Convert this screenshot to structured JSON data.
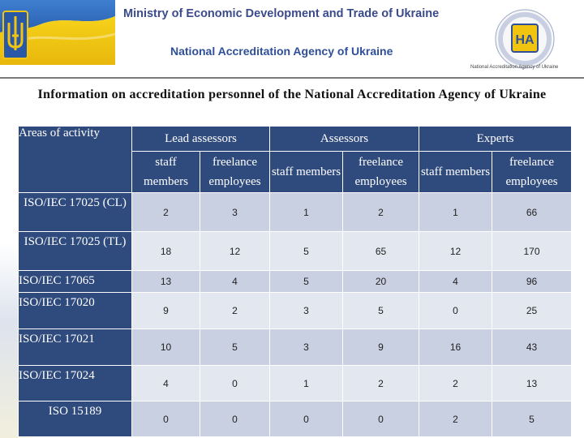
{
  "header": {
    "ministry": "Ministry of Economic Development and Trade of Ukraine",
    "agency": "National Accreditation Agency of Ukraine",
    "logo_caption": "National Accreditation Agency of Ukraine",
    "logo_mark": "НА"
  },
  "title": "Information on accreditation personnel of the National Accreditation Agency of Ukraine",
  "table": {
    "area_header": "Areas of activity",
    "groups": [
      "Lead assessors",
      "Assessors",
      "Experts"
    ],
    "subheaders": [
      "staff members",
      "freelance employees",
      "staff members",
      "freelance employees",
      "staff members",
      "freelance employees"
    ],
    "rows": [
      {
        "area": "ISO/IEC 17025 (CL)",
        "values": [
          2,
          3,
          1,
          2,
          1,
          66
        ]
      },
      {
        "area": "ISO/IEC 17025 (TL)",
        "values": [
          18,
          12,
          5,
          65,
          12,
          170
        ]
      },
      {
        "area": "ISO/IEC 17065",
        "values": [
          13,
          4,
          5,
          20,
          4,
          96
        ]
      },
      {
        "area": "ISO/IEC 17020",
        "values": [
          9,
          2,
          3,
          5,
          0,
          25
        ]
      },
      {
        "area": "ISO/IEC 17021",
        "values": [
          10,
          5,
          3,
          9,
          16,
          43
        ]
      },
      {
        "area": "ISO/IEC 17024",
        "values": [
          4,
          0,
          1,
          2,
          2,
          13
        ]
      },
      {
        "area": "ISO 15189",
        "values": [
          0,
          0,
          0,
          0,
          2,
          5
        ]
      }
    ]
  },
  "colors": {
    "header_bg": "#2f4a7c",
    "row_dark": "#c9d0e1",
    "row_light": "#e3e7f0"
  }
}
